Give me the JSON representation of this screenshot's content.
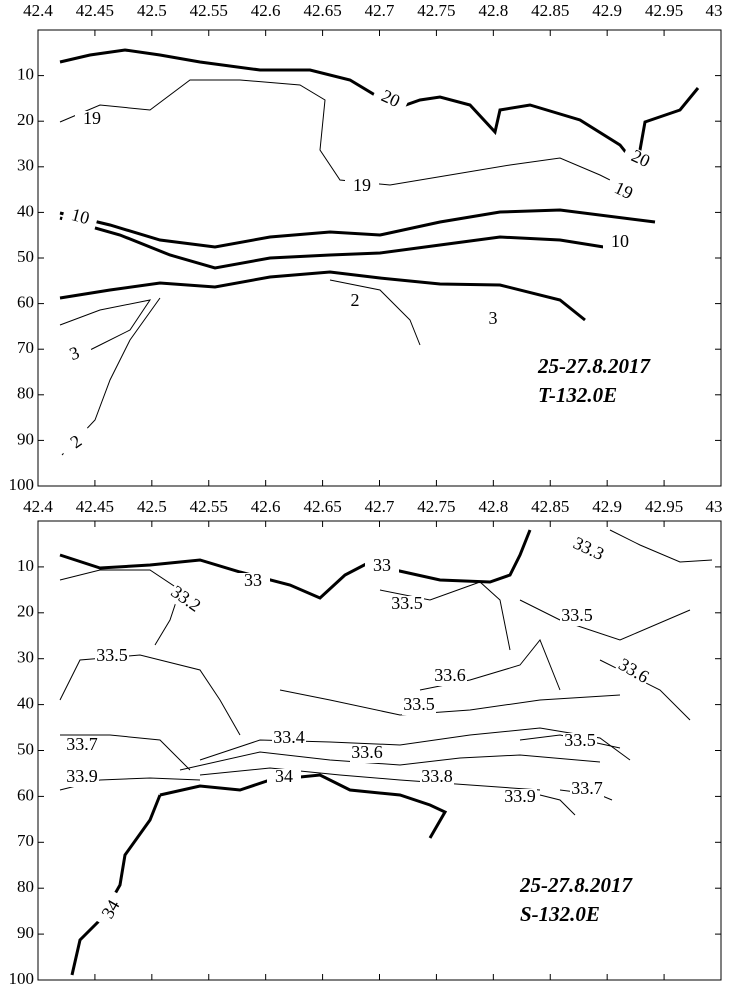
{
  "chart_data": [
    {
      "type": "contour",
      "xlim": [
        42.4,
        43
      ],
      "ylim": [
        0,
        100
      ],
      "xticks": [
        42.4,
        42.45,
        42.5,
        42.55,
        42.6,
        42.65,
        42.7,
        42.75,
        42.8,
        42.85,
        42.9,
        42.95,
        43
      ],
      "yticks": [
        10,
        20,
        30,
        40,
        50,
        60,
        70,
        80,
        90,
        100
      ],
      "contour_labels": [
        20,
        20,
        19,
        19,
        19,
        10,
        10,
        2,
        3,
        3,
        2
      ],
      "annotation": [
        "25-27.8.2017",
        "T-132.0E"
      ]
    },
    {
      "type": "contour",
      "xlim": [
        42.4,
        43
      ],
      "ylim": [
        0,
        100
      ],
      "xticks": [
        42.4,
        42.45,
        42.5,
        42.55,
        42.6,
        42.65,
        42.7,
        42.75,
        42.8,
        42.85,
        42.9,
        42.95,
        43
      ],
      "yticks": [
        10,
        20,
        30,
        40,
        50,
        60,
        70,
        80,
        90,
        100
      ],
      "contour_labels": [
        33.3,
        33.2,
        33,
        33,
        33.5,
        33.5,
        33.5,
        33.6,
        33.6,
        33.5,
        33.4,
        33.6,
        33.5,
        33.7,
        33.8,
        33.9,
        33.9,
        33.7,
        34,
        34
      ],
      "annotation": [
        "25-27.8.2017",
        "S-132.0E"
      ]
    }
  ]
}
